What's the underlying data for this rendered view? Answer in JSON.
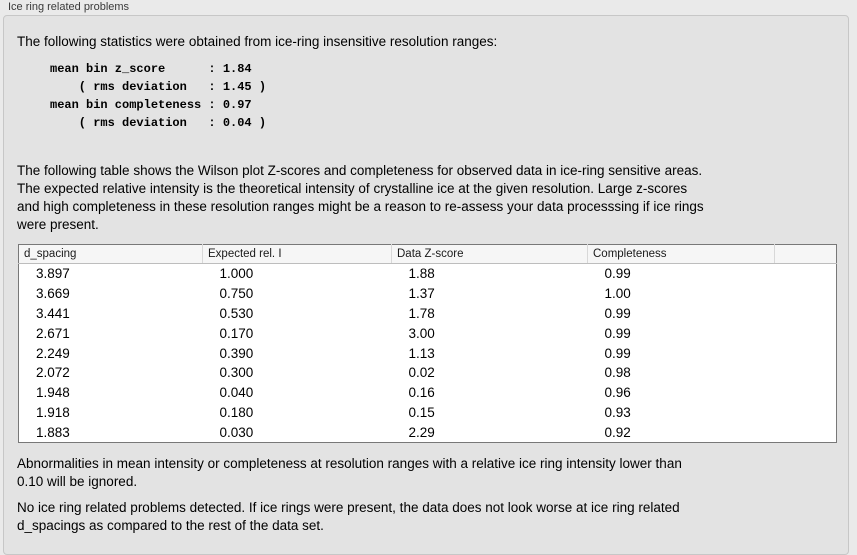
{
  "panel": {
    "title": "Ice ring related problems",
    "background_color": "#e3e3e3",
    "page_background_color": "#eaeaea"
  },
  "intro_text": "The following statistics were obtained from ice-ring insensitive resolution ranges:",
  "stats_block": "mean bin z_score      : 1.84\n    ( rms deviation   : 1.45 )\nmean bin completeness : 0.97\n    ( rms deviation   : 0.04 )",
  "stats": {
    "mean_bin_z_score": "1.84",
    "z_score_rms_deviation": "1.45",
    "mean_bin_completeness": "0.97",
    "completeness_rms_deviation": "0.04"
  },
  "description_text": "The following table shows the Wilson plot Z-scores and completeness for observed data in ice-ring sensitive areas.\nThe expected relative intensity is the theoretical intensity of crystalline ice at the given resolution. Large z-scores\nand high completeness in these resolution ranges might be a reason to re-assess your data processsing if ice rings\nwere present.",
  "table": {
    "columns": [
      "d_spacing",
      "Expected rel. I",
      "Data Z-score",
      "Completeness"
    ],
    "rows": [
      [
        "3.897",
        "1.000",
        "1.88",
        "0.99"
      ],
      [
        "3.669",
        "0.750",
        "1.37",
        "1.00"
      ],
      [
        "3.441",
        "0.530",
        "1.78",
        "0.99"
      ],
      [
        "2.671",
        "0.170",
        "3.00",
        "0.99"
      ],
      [
        "2.249",
        "0.390",
        "1.13",
        "0.99"
      ],
      [
        "2.072",
        "0.300",
        "0.02",
        "0.98"
      ],
      [
        "1.948",
        "0.040",
        "0.16",
        "0.96"
      ],
      [
        "1.918",
        "0.180",
        "0.15",
        "0.93"
      ],
      [
        "1.883",
        "0.030",
        "2.29",
        "0.92"
      ]
    ],
    "header_background": "#f6f6f6",
    "body_background": "#ffffff",
    "border_color": "#787878"
  },
  "note_ignore_text": "Abnormalities in mean intensity or completeness at resolution ranges with a relative ice ring intensity lower than\n0.10 will be ignored.",
  "note_result_text": "No ice ring related problems detected. If ice rings were present, the data does not look worse at ice ring related\nd_spacings as compared to the rest of the data set."
}
